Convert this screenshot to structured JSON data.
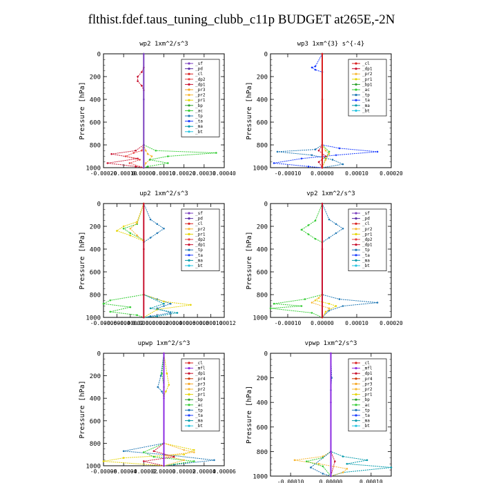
{
  "page": {
    "title": "flthist.fdef.taus_tuning_clubb_c11p  BUDGET at265E,-2N"
  },
  "colors": {
    "sf": "#7b3fbf",
    "pd": "#5a2ea6",
    "cl": "#d81e1e",
    "dp2": "#e84040",
    "dp1": "#c8102e",
    "pr3": "#f5a623",
    "pr2": "#f7b733",
    "pr1": "#e5d400",
    "bp": "#2ca02c",
    "ac": "#33cc33",
    "tp": "#1f77b4",
    "ta": "#1a3cff",
    "ma": "#0099aa",
    "bt": "#22c4e0",
    "mfl": "#8b2be2",
    "pr4": "#cc3300",
    "bp1": "#2ca02c"
  },
  "chart_data": [
    {
      "type": "line",
      "title": "wp2   1xm^2/s^3",
      "ylabel": "Pressure [hPa]",
      "ylim": [
        1000,
        0
      ],
      "yticks": [
        0,
        200,
        400,
        600,
        800,
        1000
      ],
      "xlim": [
        -0.0002,
        0.0004
      ],
      "xticks": [
        "-0.00020",
        "-0.00010",
        "0.00000",
        "0.00010",
        "0.00020",
        "0.00030",
        "0.00040"
      ],
      "legend_position": "top-right",
      "legend": [
        "_sf",
        "_pd",
        "_cl",
        "_dp2",
        "_dp1",
        "_pr3",
        "_pr2",
        "_pr1",
        "_bp",
        "_ac",
        "_tp",
        "_ta",
        "_ma",
        "_bt"
      ],
      "series": [
        {
          "name": "_dp1",
          "color": "#c8102e",
          "x": [
            0,
            0,
            -1e-05,
            -3e-05,
            -3e-05,
            -1e-05,
            0,
            0,
            -4e-05,
            -0.00016,
            -3e-05,
            -0.00018,
            -4e-05,
            0
          ],
          "y": [
            0,
            120,
            160,
            200,
            240,
            280,
            320,
            800,
            850,
            880,
            920,
            960,
            990,
            1000
          ]
        },
        {
          "name": "_pr2",
          "color": "#f7b733",
          "x": [
            0,
            1e-05,
            2e-05,
            4e-05,
            3e-05,
            1e-05,
            0
          ],
          "y": [
            800,
            850,
            880,
            900,
            930,
            960,
            1000
          ]
        },
        {
          "name": "_ac",
          "color": "#33cc33",
          "x": [
            0,
            0,
            6e-05,
            0.00036,
            0.00012,
            3e-05,
            0.00012,
            2e-05,
            0
          ],
          "y": [
            0,
            800,
            850,
            870,
            900,
            930,
            960,
            990,
            1000
          ]
        },
        {
          "name": "_dp2",
          "color": "#e84040",
          "x": [
            0,
            -1e-05,
            -5e-05,
            -9e-05,
            -2e-05,
            -7e-05,
            0
          ],
          "y": [
            800,
            850,
            870,
            900,
            930,
            960,
            1000
          ]
        },
        {
          "name": "_sf",
          "color": "#7b3fbf",
          "x": [
            0,
            0,
            0,
            0
          ],
          "y": [
            0,
            400,
            800,
            1000
          ]
        }
      ]
    },
    {
      "type": "line",
      "title": "wp3   1xm^{3} s^{-4}",
      "ylabel": "Pressure [hPa]",
      "ylim": [
        1000,
        0
      ],
      "yticks": [
        0,
        200,
        400,
        600,
        800,
        1000
      ],
      "xlim": [
        -0.00015,
        0.0002
      ],
      "xticks": [
        "-0.00010",
        "0.00000",
        "0.00010",
        "0.00020"
      ],
      "legend_position": "top-right",
      "legend": [
        "_cl",
        "_dp1",
        "_pr2",
        "_pr1",
        "_bp1",
        "_ac",
        "_tp",
        "_ta",
        "_ma",
        "_bt"
      ],
      "series": [
        {
          "name": "_ta",
          "color": "#1a3cff",
          "x": [
            0,
            -2e-05,
            -3e-05,
            -2e-05,
            0,
            0,
            5e-05,
            0.00016,
            4e-05,
            -6e-05,
            -0.00014,
            -4e-05,
            0
          ],
          "y": [
            0,
            110,
            120,
            140,
            160,
            800,
            830,
            860,
            890,
            920,
            960,
            990,
            1000
          ]
        },
        {
          "name": "_tp",
          "color": "#1f77b4",
          "x": [
            0,
            -2e-05,
            -0.00013,
            -3e-05,
            3e-05,
            6e-05,
            0
          ],
          "y": [
            800,
            840,
            860,
            890,
            930,
            970,
            1000
          ]
        },
        {
          "name": "_ac",
          "color": "#33cc33",
          "x": [
            0,
            0,
            2e-05,
            1e-05,
            0
          ],
          "y": [
            0,
            800,
            860,
            920,
            1000
          ]
        },
        {
          "name": "_pr2",
          "color": "#f7b733",
          "x": [
            0,
            1e-05,
            2e-05,
            1e-05,
            0
          ],
          "y": [
            800,
            850,
            880,
            930,
            1000
          ]
        },
        {
          "name": "_dp1",
          "color": "#c8102e",
          "x": [
            0,
            0,
            -1e-05,
            1e-05,
            -1e-05,
            0
          ],
          "y": [
            0,
            800,
            850,
            900,
            950,
            1000
          ]
        },
        {
          "name": "_cl",
          "color": "#d81e1e",
          "x": [
            0,
            0,
            0,
            0
          ],
          "y": [
            0,
            400,
            800,
            1000
          ]
        }
      ]
    },
    {
      "type": "line",
      "title": "up2   1xm^2/s^3",
      "ylabel": "Pressure [hPa]",
      "ylim": [
        1000,
        0
      ],
      "yticks": [
        0,
        200,
        400,
        600,
        800,
        1000
      ],
      "xlim": [
        -6e-05,
        0.00012
      ],
      "xticks": [
        "-0.00006",
        "-0.00004",
        "-0.00002",
        "0.00000",
        "0.00002",
        "0.00004",
        "0.00006",
        "0.00008",
        "0.00010",
        "0.00012"
      ],
      "legend_position": "top-right",
      "legend": [
        "_sf",
        "_pd",
        "_cl",
        "_pr2",
        "_pr1",
        "_dp2",
        "_dp1",
        "_tp",
        "_ta",
        "_ma",
        "_bt"
      ],
      "series": [
        {
          "name": "_tp",
          "color": "#1f77b4",
          "x": [
            0,
            1e-05,
            2e-05,
            3e-05,
            2e-05,
            1e-05,
            0,
            0,
            2e-05,
            4e-05,
            3e-05,
            2e-05,
            4e-05,
            1e-05,
            0
          ],
          "y": [
            0,
            140,
            180,
            220,
            260,
            300,
            340,
            800,
            840,
            880,
            900,
            920,
            960,
            990,
            1000
          ]
        },
        {
          "name": "_pr1",
          "color": "#e5d400",
          "x": [
            0,
            -1e-05,
            -3e-05,
            -4e-05,
            -2e-05,
            0,
            0,
            3e-05,
            7e-05,
            2e-05,
            0
          ],
          "y": [
            0,
            160,
            200,
            240,
            280,
            330,
            800,
            860,
            890,
            930,
            1000
          ]
        },
        {
          "name": "_ac",
          "color": "#33cc33",
          "x": [
            0,
            -1e-05,
            -3e-05,
            -2e-05,
            0,
            0,
            -5e-05,
            -6e-05,
            -2e-05,
            -5e-05,
            -1e-05,
            0
          ],
          "y": [
            0,
            180,
            220,
            260,
            320,
            800,
            850,
            880,
            910,
            950,
            980,
            1000
          ]
        },
        {
          "name": "_pr2",
          "color": "#f7b733",
          "x": [
            0,
            -1e-05,
            -2e-05,
            -1e-05,
            0
          ],
          "y": [
            0,
            170,
            220,
            280,
            330
          ]
        },
        {
          "name": "_ma",
          "color": "#0099aa",
          "x": [
            0,
            3e-05,
            1e-05,
            5e-05,
            2e-05,
            0
          ],
          "y": [
            800,
            880,
            920,
            960,
            990,
            1000
          ]
        },
        {
          "name": "_dp1",
          "color": "#c8102e",
          "x": [
            0,
            0,
            0,
            0
          ],
          "y": [
            0,
            400,
            800,
            1000
          ]
        }
      ]
    },
    {
      "type": "line",
      "title": "vp2   1xm^2/s^3",
      "ylabel": "Pressure [hPa]",
      "ylim": [
        1000,
        0
      ],
      "yticks": [
        0,
        200,
        400,
        600,
        800,
        1000
      ],
      "xlim": [
        -0.00015,
        0.0002
      ],
      "xticks": [
        "-0.00010",
        "0.00000",
        "0.00010",
        "0.00020"
      ],
      "legend_position": "top-right",
      "legend": [
        "_sf",
        "_pd",
        "_cl",
        "_pr2",
        "_pr1",
        "_dp2",
        "_dp1",
        "_tp",
        "_ta",
        "_ma",
        "_bt"
      ],
      "series": [
        {
          "name": "_tp",
          "color": "#1f77b4",
          "x": [
            0,
            2e-05,
            4e-05,
            6e-05,
            4e-05,
            2e-05,
            0,
            0,
            5e-05,
            0.00016,
            6e-05,
            2e-05,
            0
          ],
          "y": [
            0,
            140,
            180,
            220,
            260,
            300,
            340,
            800,
            840,
            870,
            900,
            940,
            1000
          ]
        },
        {
          "name": "_ac",
          "color": "#33cc33",
          "x": [
            0,
            -2e-05,
            -4e-05,
            -6e-05,
            -4e-05,
            -2e-05,
            0,
            0,
            -5e-05,
            -0.00014,
            -6e-05,
            -0.00015,
            -3e-05,
            0
          ],
          "y": [
            0,
            150,
            190,
            230,
            270,
            310,
            340,
            800,
            840,
            880,
            900,
            920,
            960,
            1000
          ]
        },
        {
          "name": "_pr1",
          "color": "#e5d400",
          "x": [
            0,
            -2e-05,
            2e-05,
            4e-05,
            1e-05,
            0
          ],
          "y": [
            800,
            850,
            880,
            900,
            950,
            1000
          ]
        },
        {
          "name": "_pr2",
          "color": "#f7b733",
          "x": [
            0,
            -1e-05,
            -3e-05,
            2e-05,
            0
          ],
          "y": [
            800,
            830,
            870,
            920,
            1000
          ]
        },
        {
          "name": "_dp1",
          "color": "#c8102e",
          "x": [
            0,
            0,
            0,
            0
          ],
          "y": [
            0,
            400,
            800,
            1000
          ]
        }
      ]
    },
    {
      "type": "line",
      "title": "upwp   1xm^2/s^3",
      "ylabel": "Pressure [hPa]",
      "ylim": [
        1000,
        0
      ],
      "yticks": [
        0,
        200,
        400,
        600,
        800,
        1000
      ],
      "xlim": [
        -6e-05,
        6e-05
      ],
      "xticks": [
        "-0.00006",
        "-0.00004",
        "-0.00002",
        "0.00000",
        "0.00002",
        "0.00004",
        "0.00006"
      ],
      "legend_position": "top-right",
      "legend": [
        "_cl",
        "_mfl",
        "_dp1",
        "_pr4",
        "_pr3",
        "_pr2",
        "_pr1",
        "_bp",
        "_ac",
        "_tp",
        "_ta",
        "_ma",
        "_bt"
      ],
      "series": [
        {
          "name": "_tp",
          "color": "#1f77b4",
          "x": [
            0,
            -3e-06,
            -6e-06,
            -2e-06,
            0,
            0,
            -4e-05,
            0,
            5e-05,
            1e-05,
            0
          ],
          "y": [
            0,
            200,
            300,
            340,
            380,
            800,
            870,
            900,
            950,
            990,
            1000
          ]
        },
        {
          "name": "_pr1",
          "color": "#e5d400",
          "x": [
            0,
            3e-06,
            5e-06,
            2e-06,
            0,
            0,
            3e-05,
            2e-05,
            -4e-05,
            -6e-05,
            0
          ],
          "y": [
            0,
            180,
            280,
            340,
            380,
            800,
            860,
            900,
            930,
            960,
            1000
          ]
        },
        {
          "name": "_ac",
          "color": "#33cc33",
          "x": [
            0,
            -2e-06,
            0,
            0,
            -2e-05,
            -1e-05,
            3e-05,
            0
          ],
          "y": [
            0,
            180,
            300,
            800,
            880,
            920,
            960,
            1000
          ]
        },
        {
          "name": "_pr2",
          "color": "#f7b733",
          "x": [
            0,
            2e-05,
            3e-05,
            0,
            2e-05,
            0
          ],
          "y": [
            800,
            860,
            880,
            910,
            950,
            1000
          ]
        },
        {
          "name": "_dp1",
          "color": "#c8102e",
          "x": [
            0,
            0,
            -1e-05,
            1e-05,
            -2e-05,
            0
          ],
          "y": [
            0,
            800,
            870,
            920,
            960,
            1000
          ]
        },
        {
          "name": "_mfl",
          "color": "#8b2be2",
          "x": [
            0,
            0,
            0,
            0
          ],
          "y": [
            0,
            400,
            800,
            1000
          ]
        }
      ]
    },
    {
      "type": "line",
      "title": "vpwp   1xm^2/s^3",
      "ylabel": "Pressure [hPa]",
      "ylim": [
        1000,
        0
      ],
      "yticks": [
        0,
        200,
        400,
        600,
        800,
        1000
      ],
      "xlim": [
        -0.00015,
        0.00015
      ],
      "xticks": [
        "-0.00010",
        "0.00000",
        "0.00010"
      ],
      "legend_position": "top-right",
      "legend": [
        "_cl",
        "_mfl",
        "_dp1",
        "_pr4",
        "_pr3",
        "_pr2",
        "_pr1",
        "_bp",
        "_ac",
        "_tp",
        "_ta",
        "_ma",
        "_bt"
      ],
      "series": [
        {
          "name": "_ma",
          "color": "#0099aa",
          "x": [
            0,
            0,
            3e-05,
            9e-05,
            4e-05,
            0.00015,
            3e-05,
            0
          ],
          "y": [
            0,
            800,
            840,
            870,
            900,
            930,
            970,
            1000
          ]
        },
        {
          "name": "_pr2",
          "color": "#f7b733",
          "x": [
            0,
            0,
            -2e-05,
            -9e-05,
            -3e-05,
            4e-05,
            3e-05,
            0
          ],
          "y": [
            0,
            800,
            840,
            870,
            900,
            940,
            970,
            1000
          ]
        },
        {
          "name": "_ac",
          "color": "#33cc33",
          "x": [
            0,
            0,
            -2e-05,
            -6e-05,
            -2e-05,
            0
          ],
          "y": [
            0,
            800,
            850,
            880,
            920,
            1000
          ]
        },
        {
          "name": "_tp",
          "color": "#1f77b4",
          "x": [
            0,
            2e-06,
            0,
            0,
            -5e-05,
            -2e-05,
            0
          ],
          "y": [
            0,
            200,
            300,
            800,
            930,
            980,
            1000
          ]
        },
        {
          "name": "_dp1",
          "color": "#c8102e",
          "x": [
            0,
            0,
            1e-05,
            0
          ],
          "y": [
            0,
            800,
            880,
            1000
          ]
        },
        {
          "name": "_mfl",
          "color": "#8b2be2",
          "x": [
            0,
            0,
            0,
            0
          ],
          "y": [
            0,
            400,
            800,
            1000
          ]
        }
      ]
    }
  ]
}
